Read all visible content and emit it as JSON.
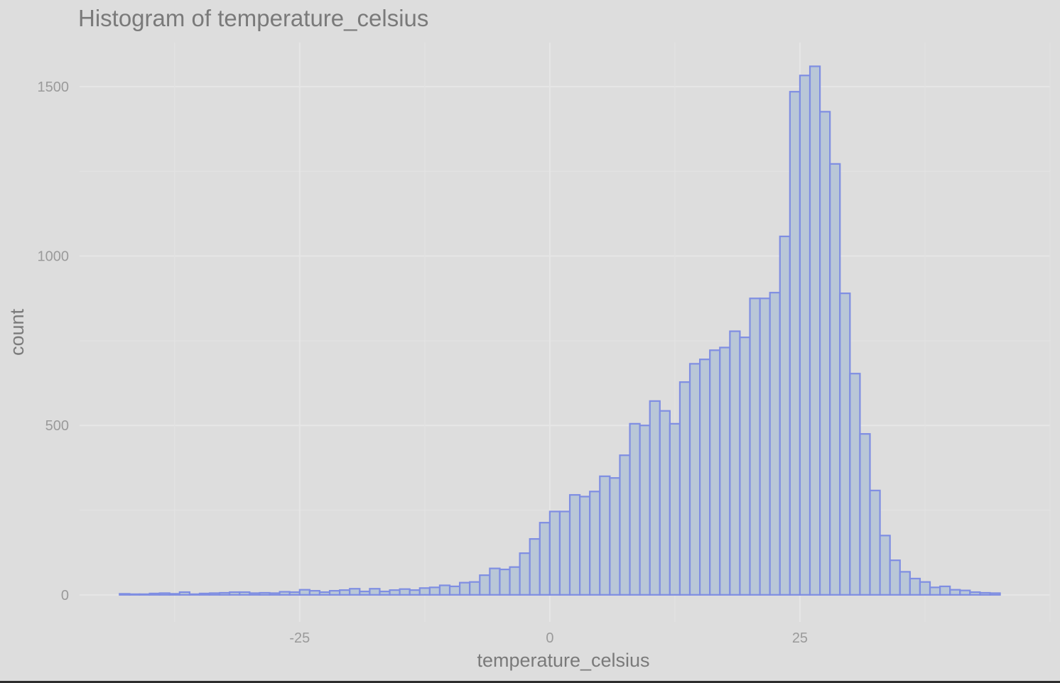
{
  "chart_data": {
    "type": "bar",
    "title": "Histogram of temperature_celsius",
    "xlabel": "temperature_celsius",
    "ylabel": "count",
    "x_ticks": [
      -25,
      0,
      25
    ],
    "x_tick_labels": [
      "-25",
      "0",
      "25"
    ],
    "y_ticks": [
      0,
      500,
      1000,
      1500
    ],
    "y_tick_labels": [
      "0",
      "500",
      "1000",
      "1500"
    ],
    "x_range": [
      -47,
      50
    ],
    "y_range": [
      -80,
      1630
    ],
    "grid": true,
    "bin_width": 1,
    "bin_start": -43,
    "counts": [
      3,
      2,
      2,
      4,
      5,
      3,
      8,
      2,
      4,
      5,
      6,
      8,
      8,
      5,
      6,
      5,
      9,
      8,
      15,
      12,
      8,
      12,
      14,
      18,
      10,
      18,
      10,
      14,
      17,
      14,
      20,
      22,
      28,
      25,
      36,
      38,
      58,
      78,
      75,
      82,
      123,
      165,
      213,
      246,
      246,
      295,
      290,
      305,
      350,
      345,
      412,
      505,
      500,
      572,
      543,
      505,
      628,
      682,
      695,
      722,
      730,
      778,
      760,
      875,
      875,
      892,
      1058,
      1485,
      1533,
      1560,
      1426,
      1272,
      890,
      653,
      475,
      308,
      175,
      102,
      68,
      48,
      38,
      22,
      25,
      15,
      13,
      8,
      6,
      5
    ]
  },
  "colors": {
    "background": "#dddddd",
    "grid_major": "#e6e6e6",
    "grid_minor": "#e2e2e2",
    "bar_fill": "#b9c7d7",
    "bar_stroke": "#7f8ee2",
    "text_primary": "#7a7a7a",
    "text_secondary": "#9a9a9a"
  }
}
